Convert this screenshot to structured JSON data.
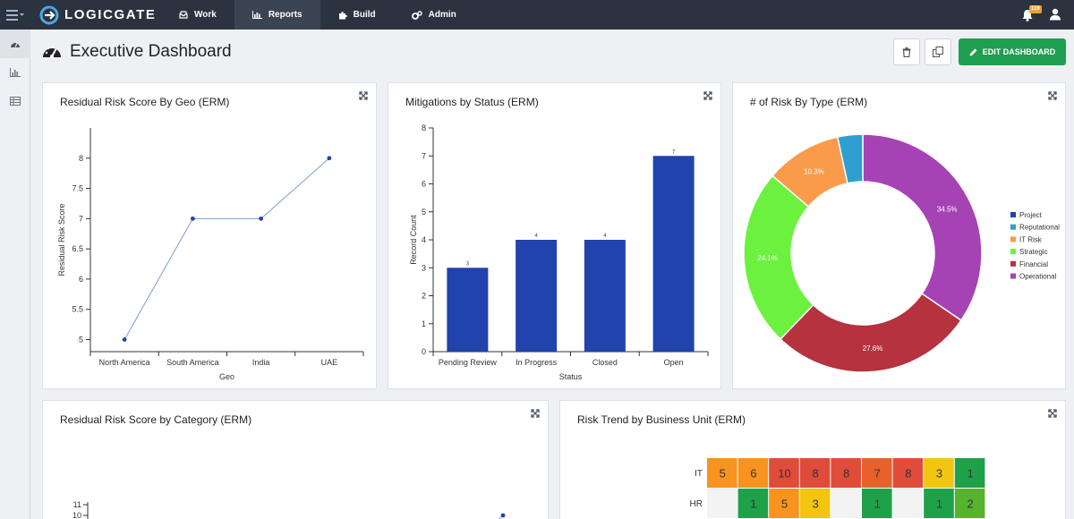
{
  "app": {
    "brand": "LOGICGATE",
    "nav": [
      {
        "label": "Work",
        "icon": "inbox-icon",
        "active": false
      },
      {
        "label": "Reports",
        "icon": "bar-chart-icon",
        "active": true
      },
      {
        "label": "Build",
        "icon": "puzzle-icon",
        "active": false
      },
      {
        "label": "Admin",
        "icon": "cogs-icon",
        "active": false
      }
    ],
    "notification_count": "119"
  },
  "sidebar": {
    "items": [
      {
        "icon": "dashboard-icon",
        "active": true
      },
      {
        "icon": "bar-chart-icon",
        "active": false
      },
      {
        "icon": "table-icon",
        "active": false
      }
    ]
  },
  "header": {
    "title": "Executive Dashboard",
    "edit_label": "EDIT DASHBOARD"
  },
  "colors": {
    "accent_green": "#1e9e50",
    "topbar": "#2b3340",
    "bar_blue": "#2043ac"
  },
  "cards": {
    "geo": {
      "title": "Residual Risk Score By Geo (ERM)"
    },
    "mitigations": {
      "title": "Mitigations by Status (ERM)"
    },
    "risk_type": {
      "title": "# of Risk By Type (ERM)"
    },
    "category": {
      "title": "Residual Risk Score by Category (ERM)"
    },
    "trend": {
      "title": "Risk Trend by Business Unit (ERM)"
    }
  },
  "chart_data": [
    {
      "type": "line",
      "title": "Residual Risk Score By Geo (ERM)",
      "categories": [
        "North America",
        "South America",
        "India",
        "UAE"
      ],
      "values": [
        5,
        7,
        7,
        8
      ],
      "xlabel": "Geo",
      "ylabel": "Residual Risk Score",
      "ylim": [
        4.8,
        8.5
      ],
      "yticks": [
        5,
        5.5,
        6,
        6.5,
        7,
        7.5,
        8
      ],
      "color": "#2043ac"
    },
    {
      "type": "bar",
      "title": "Mitigations by Status (ERM)",
      "categories": [
        "Pending Review",
        "In Progress",
        "Closed",
        "Open"
      ],
      "values": [
        3,
        4,
        4,
        7
      ],
      "xlabel": "Status",
      "ylabel": "Record Count",
      "ylim": [
        0,
        8
      ],
      "yticks": [
        0,
        1,
        2,
        3,
        4,
        5,
        6,
        7,
        8
      ],
      "color": "#2043ac"
    },
    {
      "type": "pie",
      "title": "# of Risk By Type (ERM)",
      "slices": [
        {
          "name": "Project",
          "value": 0,
          "label": "",
          "color": "#2043ac"
        },
        {
          "name": "Reputational",
          "value": 3.4,
          "label": "",
          "color": "#2e9fd0"
        },
        {
          "name": "IT Risk",
          "value": 10.3,
          "label": "10.3%",
          "color": "#fa9b4b"
        },
        {
          "name": "Strategic",
          "value": 24.1,
          "label": "24.1%",
          "color": "#6cf13f"
        },
        {
          "name": "Financial",
          "value": 27.6,
          "label": "27.6%",
          "color": "#b5323e"
        },
        {
          "name": "Operational",
          "value": 34.5,
          "label": "34.5%",
          "color": "#a543b5"
        }
      ],
      "legend_position": "right"
    },
    {
      "type": "line",
      "title": "Residual Risk Score by Category (ERM)",
      "yticks_visible": [
        "10",
        "11"
      ]
    },
    {
      "type": "heatmap",
      "title": "Risk Trend by Business Unit (ERM)",
      "rows": [
        {
          "label": "IT",
          "cells": [
            "5",
            "6",
            "10",
            "8",
            "8",
            "7",
            "8",
            "3",
            "1"
          ],
          "colors": [
            "#f7931e",
            "#f7931e",
            "#e04b3a",
            "#e04b3a",
            "#e04b3a",
            "#e8612a",
            "#e04b3a",
            "#f2c511",
            "#1fa14a"
          ]
        },
        {
          "label": "HR",
          "cells": [
            "",
            "1",
            "5",
            "3",
            "",
            "1",
            "",
            "1",
            "2"
          ],
          "colors": [
            "#f3f3f3",
            "#1fa14a",
            "#f7931e",
            "#f2c511",
            "#f3f3f3",
            "#1fa14a",
            "#f3f3f3",
            "#1fa14a",
            "#57b32e"
          ]
        }
      ]
    }
  ]
}
